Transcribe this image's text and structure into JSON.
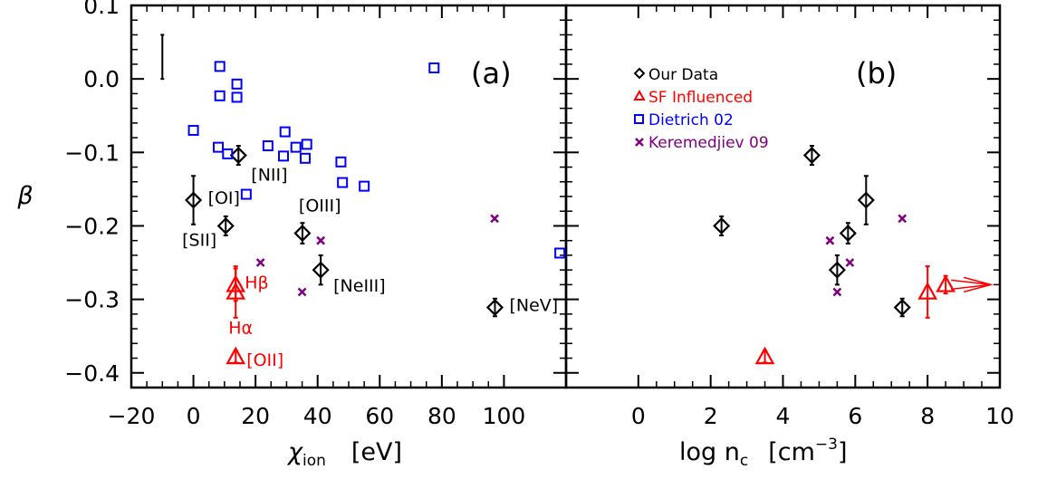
{
  "chart_data": [
    {
      "type": "scatter",
      "panel_label": "(a)",
      "xlabel_main": "χ",
      "xlabel_sub": "ion",
      "xlabel_unit": "[eV]",
      "ylabel": "β",
      "xlim": [
        -20,
        120
      ],
      "ylim": [
        -0.42,
        0.1
      ],
      "x_ticks": [
        -20,
        0,
        20,
        40,
        60,
        80,
        100
      ],
      "x_tick_labels": [
        "−20",
        "0",
        "20",
        "40",
        "60",
        "80",
        "100"
      ],
      "y_ticks": [
        -0.4,
        -0.3,
        -0.2,
        -0.1,
        0.0,
        0.1
      ],
      "y_tick_labels": [
        "−0.4",
        "−0.3",
        "−0.2",
        "−0.1",
        "0.0",
        "0.1"
      ],
      "typical_error_bar": {
        "x": -10,
        "y_low": 0.0,
        "y_high": 0.06
      },
      "series": [
        {
          "name": "Our Data",
          "color": "#000000",
          "marker": "diamond",
          "points": [
            {
              "x": 0,
              "y": -0.165,
              "err": 0.033,
              "label": "[OI]"
            },
            {
              "x": 10.4,
              "y": -0.2,
              "err": 0.013,
              "label": "[SII]"
            },
            {
              "x": 14.5,
              "y": -0.104,
              "err": 0.013,
              "label": "[NII]"
            },
            {
              "x": 35.1,
              "y": -0.21,
              "err": 0.014,
              "label": "[OIII]"
            },
            {
              "x": 41,
              "y": -0.26,
              "err": 0.02,
              "label": "[NeIII]"
            },
            {
              "x": 97.1,
              "y": -0.311,
              "err": 0.012,
              "label": "[NeV]"
            }
          ]
        },
        {
          "name": "SF Influenced",
          "color": "#ff0000",
          "marker": "triangle",
          "points": [
            {
              "x": 13.6,
              "y": -0.28,
              "err": 0.022,
              "label": "Hβ"
            },
            {
              "x": 13.6,
              "y": -0.29,
              "err": 0.035,
              "label": "Hα"
            },
            {
              "x": 13.6,
              "y": -0.378,
              "err": 0.008,
              "label": "[OII]"
            }
          ]
        },
        {
          "name": "Dietrich 02",
          "color": "#0000ff",
          "marker": "square",
          "points": [
            {
              "x": 0,
              "y": -0.07
            },
            {
              "x": 8,
              "y": -0.093
            },
            {
              "x": 8.5,
              "y": 0.017
            },
            {
              "x": 8.5,
              "y": -0.023
            },
            {
              "x": 11,
              "y": -0.102
            },
            {
              "x": 14,
              "y": -0.007
            },
            {
              "x": 14,
              "y": -0.025
            },
            {
              "x": 17,
              "y": -0.157
            },
            {
              "x": 24,
              "y": -0.091
            },
            {
              "x": 29,
              "y": -0.105
            },
            {
              "x": 29.5,
              "y": -0.072
            },
            {
              "x": 33,
              "y": -0.093
            },
            {
              "x": 36,
              "y": -0.108
            },
            {
              "x": 36.5,
              "y": -0.089
            },
            {
              "x": 47.5,
              "y": -0.113
            },
            {
              "x": 48,
              "y": -0.141
            },
            {
              "x": 55,
              "y": -0.146
            },
            {
              "x": 77.5,
              "y": 0.015
            },
            {
              "x": 118,
              "y": -0.237
            }
          ]
        },
        {
          "name": "Keremedjiev 09",
          "color": "#800080",
          "marker": "x",
          "points": [
            {
              "x": 21.6,
              "y": -0.25
            },
            {
              "x": 35,
              "y": -0.29
            },
            {
              "x": 41,
              "y": -0.22
            },
            {
              "x": 97,
              "y": -0.19
            }
          ]
        }
      ]
    },
    {
      "type": "scatter",
      "panel_label": "(b)",
      "xlabel_main": "log n",
      "xlabel_sub": "c",
      "xlabel_unit": "[cm",
      "xlabel_sup": "−3",
      "xlabel_close": "]",
      "xlim": [
        -2,
        10
      ],
      "ylim": [
        -0.42,
        0.1
      ],
      "x_ticks": [
        0,
        2,
        4,
        6,
        8,
        10
      ],
      "x_tick_labels": [
        "0",
        "2",
        "4",
        "6",
        "8",
        "10"
      ],
      "legend_position": "top-left",
      "series": [
        {
          "name": "Our Data",
          "color": "#000000",
          "marker": "diamond",
          "points": [
            {
              "x": 2.3,
              "y": -0.2,
              "err": 0.013
            },
            {
              "x": 4.8,
              "y": -0.104,
              "err": 0.013
            },
            {
              "x": 5.5,
              "y": -0.26,
              "err": 0.02
            },
            {
              "x": 5.8,
              "y": -0.21,
              "err": 0.014
            },
            {
              "x": 6.3,
              "y": -0.165,
              "err": 0.033
            },
            {
              "x": 7.3,
              "y": -0.311,
              "err": 0.012
            }
          ]
        },
        {
          "name": "SF Influenced",
          "color": "#ff0000",
          "marker": "triangle",
          "points": [
            {
              "x": 3.5,
              "y": -0.378,
              "err": 0.008
            },
            {
              "x": 8.0,
              "y": -0.29,
              "err": 0.035,
              "lower_limit": false
            },
            {
              "x": 8.5,
              "y": -0.28,
              "err": 0.012,
              "lower_limit": true
            }
          ]
        },
        {
          "name": "Dietrich 02",
          "color": "#0000ff",
          "marker": "square",
          "points": []
        },
        {
          "name": "Keremedjiev 09",
          "color": "#800080",
          "marker": "x",
          "points": [
            {
              "x": 5.3,
              "y": -0.22
            },
            {
              "x": 5.5,
              "y": -0.29
            },
            {
              "x": 5.85,
              "y": -0.25
            },
            {
              "x": 7.3,
              "y": -0.19
            }
          ]
        }
      ]
    }
  ]
}
